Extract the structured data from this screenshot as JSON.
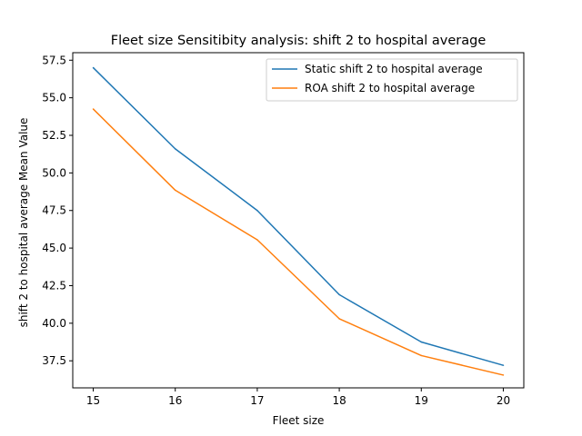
{
  "chart_data": {
    "type": "line",
    "title": "Fleet size Sensitibity analysis: shift 2 to hospital average",
    "xlabel": "Fleet size",
    "ylabel": "shift 2 to hospital average Mean Value",
    "x": [
      15,
      16,
      17,
      18,
      19,
      20
    ],
    "xlim": [
      14.75,
      20.25
    ],
    "ylim": [
      35.7,
      58.0
    ],
    "xticks": [
      "15",
      "16",
      "17",
      "18",
      "19",
      "20"
    ],
    "yticks": [
      "37.5",
      "40.0",
      "42.5",
      "45.0",
      "47.5",
      "50.0",
      "52.5",
      "55.0",
      "57.5"
    ],
    "grid": false,
    "legend_position": "top-right",
    "series": [
      {
        "name": "Static shift 2 to hospital average",
        "color": "#1f77b4",
        "values": [
          57.0,
          51.6,
          47.5,
          41.9,
          38.75,
          37.2
        ]
      },
      {
        "name": "ROA shift 2 to hospital average",
        "color": "#ff7f0e",
        "values": [
          54.25,
          48.85,
          45.55,
          40.3,
          37.85,
          36.55
        ]
      }
    ]
  }
}
